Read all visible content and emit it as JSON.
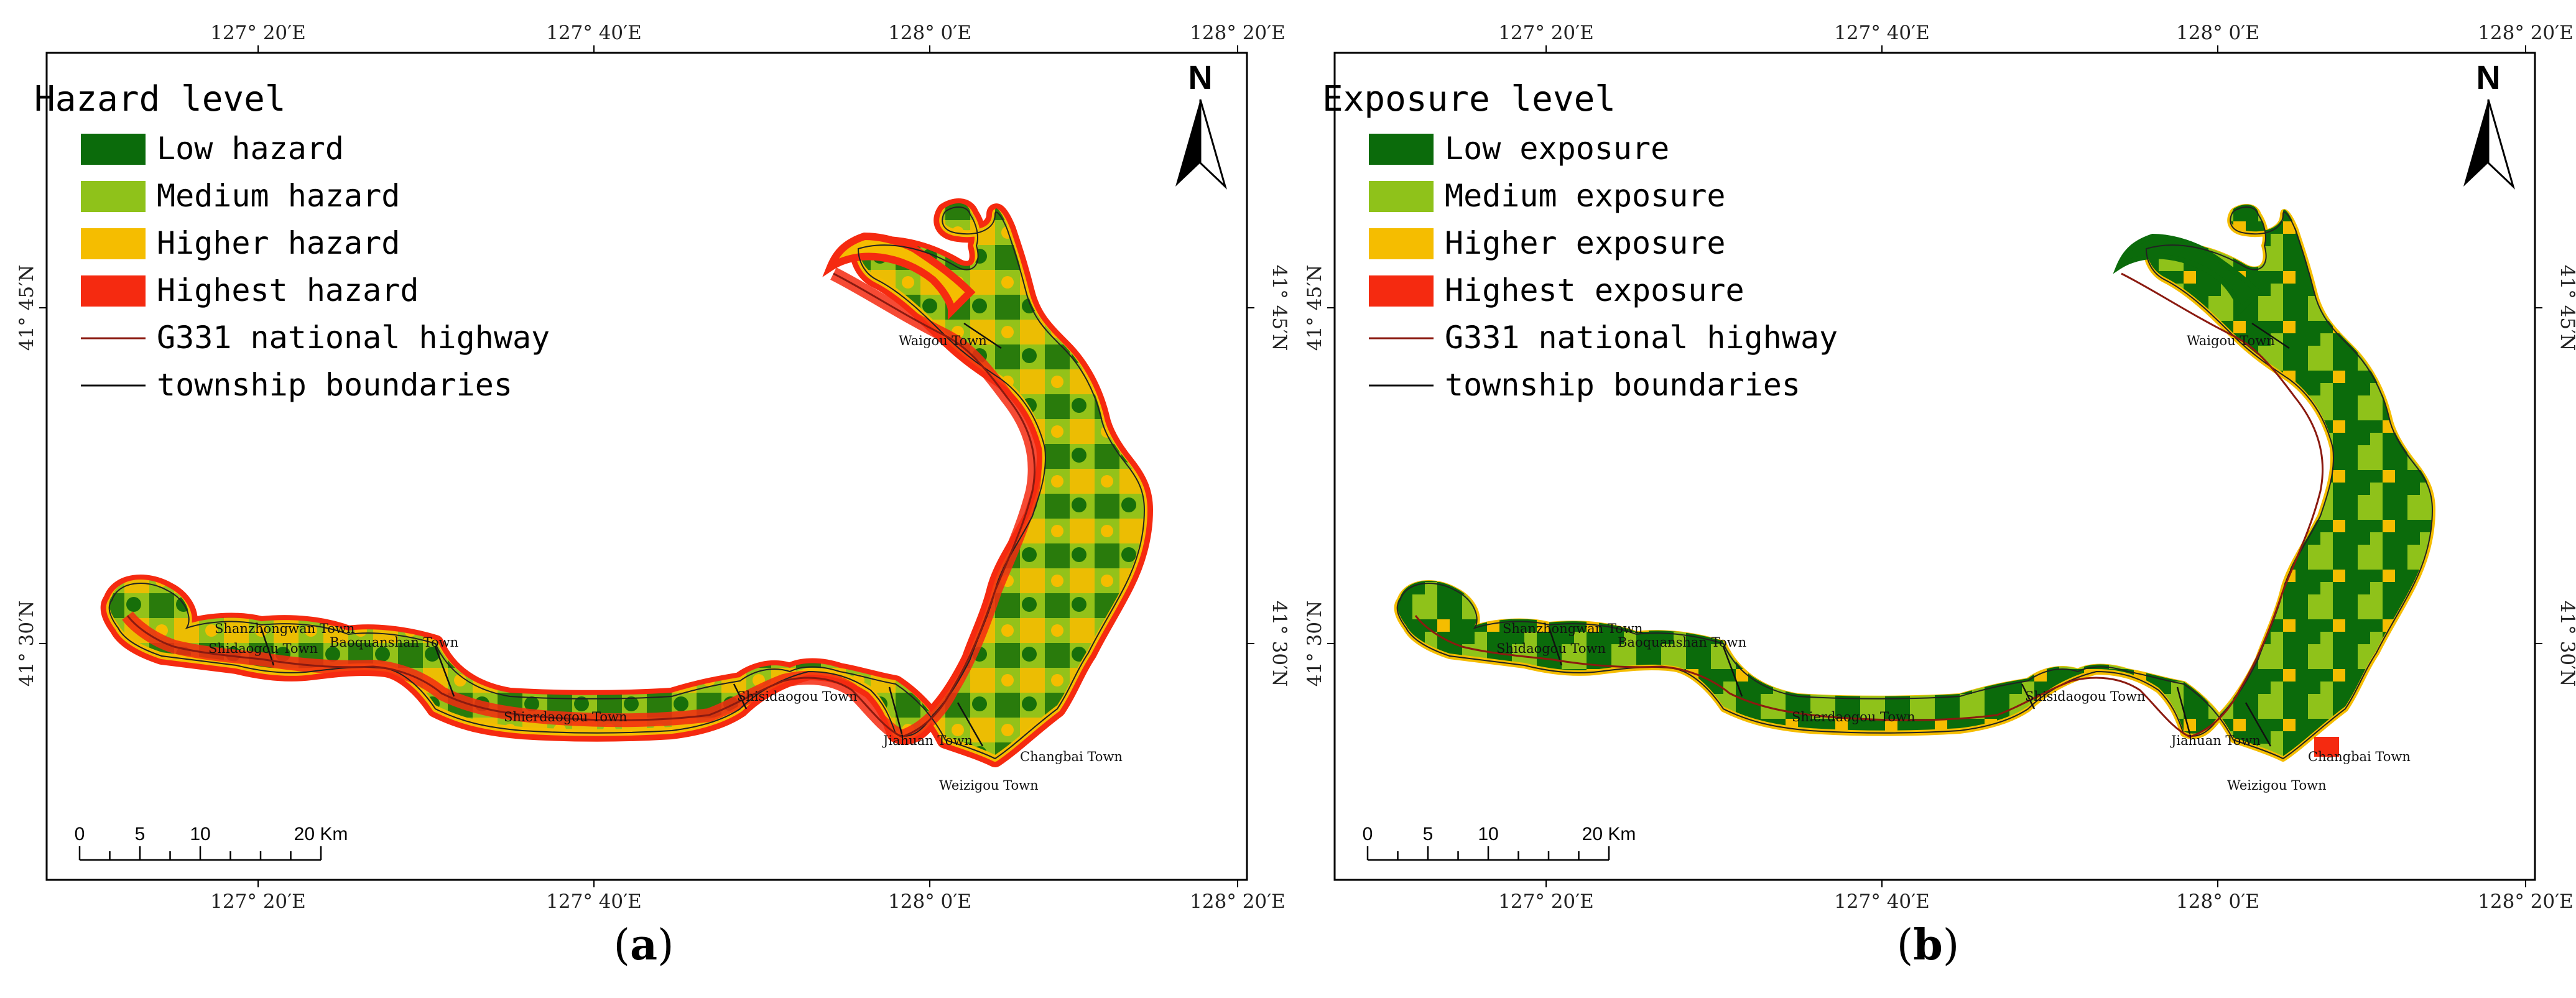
{
  "colors": {
    "low": "#0b6b0b",
    "medium": "#8fc21a",
    "higher": "#f5bd00",
    "highest": "#f52a10",
    "highway": "#8b1a10",
    "boundary": "#111111"
  },
  "coords": {
    "lon_labels": [
      "127° 20′E",
      "127° 40′E",
      "128° 0′E",
      "128° 20′E"
    ],
    "lat_labels": [
      "41° 45′N",
      "41° 30′N"
    ]
  },
  "towns": [
    "Waigou Town",
    "Shanzhongwan Town",
    "Shidaogou Town",
    "Baoquanshan Town",
    "Shierdaogou Town",
    "Shisidaogou Town",
    "Jiahuan Town",
    "Changbai Town",
    "Weizigou Town"
  ],
  "scale": {
    "labels": [
      "0",
      "5",
      "10",
      "20 Km"
    ]
  },
  "north_label": "N",
  "panels": [
    {
      "caption_letter": "a",
      "legend": {
        "title": "Hazard level",
        "items": [
          "Low hazard",
          "Medium hazard",
          "Higher hazard",
          "Highest hazard",
          "G331 national highway",
          "township boundaries"
        ]
      }
    },
    {
      "caption_letter": "b",
      "legend": {
        "title": "Exposure level",
        "items": [
          "Low exposure",
          "Medium exposure",
          "Higher exposure",
          "Highest exposure",
          "G331 national highway",
          "township boundaries"
        ]
      }
    }
  ]
}
